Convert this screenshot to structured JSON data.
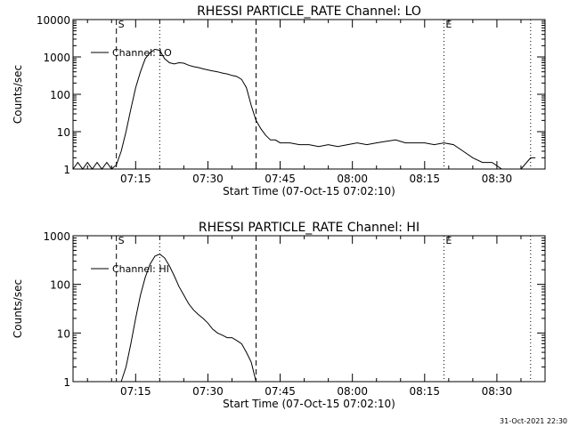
{
  "chart_data": [
    {
      "type": "line",
      "title": "RHESSI PARTICLE_RATE Channel: LO",
      "xlabel": "Start Time (07-Oct-15 07:02:10)",
      "ylabel": "Counts/sec",
      "y_scale": "log",
      "ylim": [
        1,
        10000
      ],
      "x_unit": "HH:MM",
      "xlim": [
        "07:02",
        "08:40"
      ],
      "x_ticks": [
        "07:15",
        "07:30",
        "07:45",
        "08:00",
        "08:15",
        "08:30"
      ],
      "y_ticks": [
        "1",
        "10",
        "100",
        "1000",
        "10000"
      ],
      "legend": "Channel: LO",
      "legend_position": "top-left",
      "markers": [
        {
          "label": "S",
          "time": "07:11",
          "style": "dashed"
        },
        {
          "label": "",
          "time": "07:20",
          "style": "dotted"
        },
        {
          "label": "",
          "time": "07:40",
          "style": "dashed"
        },
        {
          "label": "E",
          "time": "08:19",
          "style": "dotted"
        },
        {
          "label": "",
          "time": "08:37",
          "style": "dotted"
        }
      ],
      "series": [
        {
          "x": [
            "07:02",
            "07:03",
            "07:04",
            "07:05",
            "07:06",
            "07:07",
            "07:08",
            "07:09",
            "07:10",
            "07:11",
            "07:12",
            "07:13",
            "07:14",
            "07:15",
            "07:16",
            "07:17",
            "07:18",
            "07:19",
            "07:20",
            "07:21",
            "07:22",
            "07:23",
            "07:24",
            "07:25",
            "07:26",
            "07:27",
            "07:28",
            "07:29",
            "07:30",
            "07:31",
            "07:32",
            "07:33",
            "07:34",
            "07:35",
            "07:36",
            "07:37",
            "07:38",
            "07:39",
            "07:40",
            "07:41",
            "07:42",
            "07:43",
            "07:44",
            "07:45",
            "07:47",
            "07:49",
            "07:51",
            "07:53",
            "07:55",
            "07:57",
            "07:59",
            "08:01",
            "08:03",
            "08:05",
            "08:07",
            "08:09",
            "08:11",
            "08:13",
            "08:15",
            "08:17",
            "08:19",
            "08:21",
            "08:23",
            "08:25",
            "08:27",
            "08:29",
            "08:31",
            "08:33",
            "08:35",
            "08:37",
            "08:38"
          ],
          "values": [
            1,
            1.5,
            1,
            1.5,
            1,
            1.5,
            1,
            1.5,
            1,
            1.3,
            3,
            10,
            40,
            150,
            400,
            900,
            1300,
            1600,
            1500,
            900,
            700,
            650,
            700,
            680,
            600,
            550,
            520,
            480,
            450,
            420,
            400,
            370,
            350,
            320,
            300,
            250,
            150,
            50,
            20,
            12,
            8,
            6,
            6,
            5,
            5,
            4.5,
            4.5,
            4,
            4.5,
            4,
            4.5,
            5,
            4.5,
            5,
            5.5,
            6,
            5,
            5,
            5,
            4.5,
            5,
            4.5,
            3,
            2,
            1.5,
            1.5,
            1,
            1,
            1,
            2,
            2
          ]
        }
      ]
    },
    {
      "type": "line",
      "title": "RHESSI PARTICLE_RATE Channel: HI",
      "xlabel": "Start Time (07-Oct-15 07:02:10)",
      "ylabel": "Counts/sec",
      "y_scale": "log",
      "ylim": [
        1,
        1000
      ],
      "x_unit": "HH:MM",
      "xlim": [
        "07:02",
        "08:40"
      ],
      "x_ticks": [
        "07:15",
        "07:30",
        "07:45",
        "08:00",
        "08:15",
        "08:30"
      ],
      "y_ticks": [
        "1",
        "10",
        "100",
        "1000"
      ],
      "legend": "Channel: HI",
      "legend_position": "top-left",
      "markers": [
        {
          "label": "S",
          "time": "07:11",
          "style": "dashed"
        },
        {
          "label": "",
          "time": "07:20",
          "style": "dotted"
        },
        {
          "label": "",
          "time": "07:40",
          "style": "dashed"
        },
        {
          "label": "E",
          "time": "08:19",
          "style": "dotted"
        },
        {
          "label": "",
          "time": "08:37",
          "style": "dotted"
        }
      ],
      "series": [
        {
          "x": [
            "07:12",
            "07:13",
            "07:14",
            "07:15",
            "07:16",
            "07:17",
            "07:18",
            "07:19",
            "07:20",
            "07:21",
            "07:22",
            "07:23",
            "07:24",
            "07:25",
            "07:26",
            "07:27",
            "07:28",
            "07:29",
            "07:30",
            "07:31",
            "07:32",
            "07:33",
            "07:34",
            "07:35",
            "07:36",
            "07:37",
            "07:38",
            "07:39",
            "07:40"
          ],
          "values": [
            1,
            2,
            6,
            20,
            60,
            140,
            260,
            380,
            420,
            350,
            240,
            150,
            90,
            60,
            40,
            30,
            24,
            20,
            16,
            12,
            10,
            9,
            8,
            8,
            7,
            6,
            4,
            2.5,
            1
          ]
        }
      ]
    }
  ],
  "footer_stamp": "31-Oct-2021 22:30"
}
